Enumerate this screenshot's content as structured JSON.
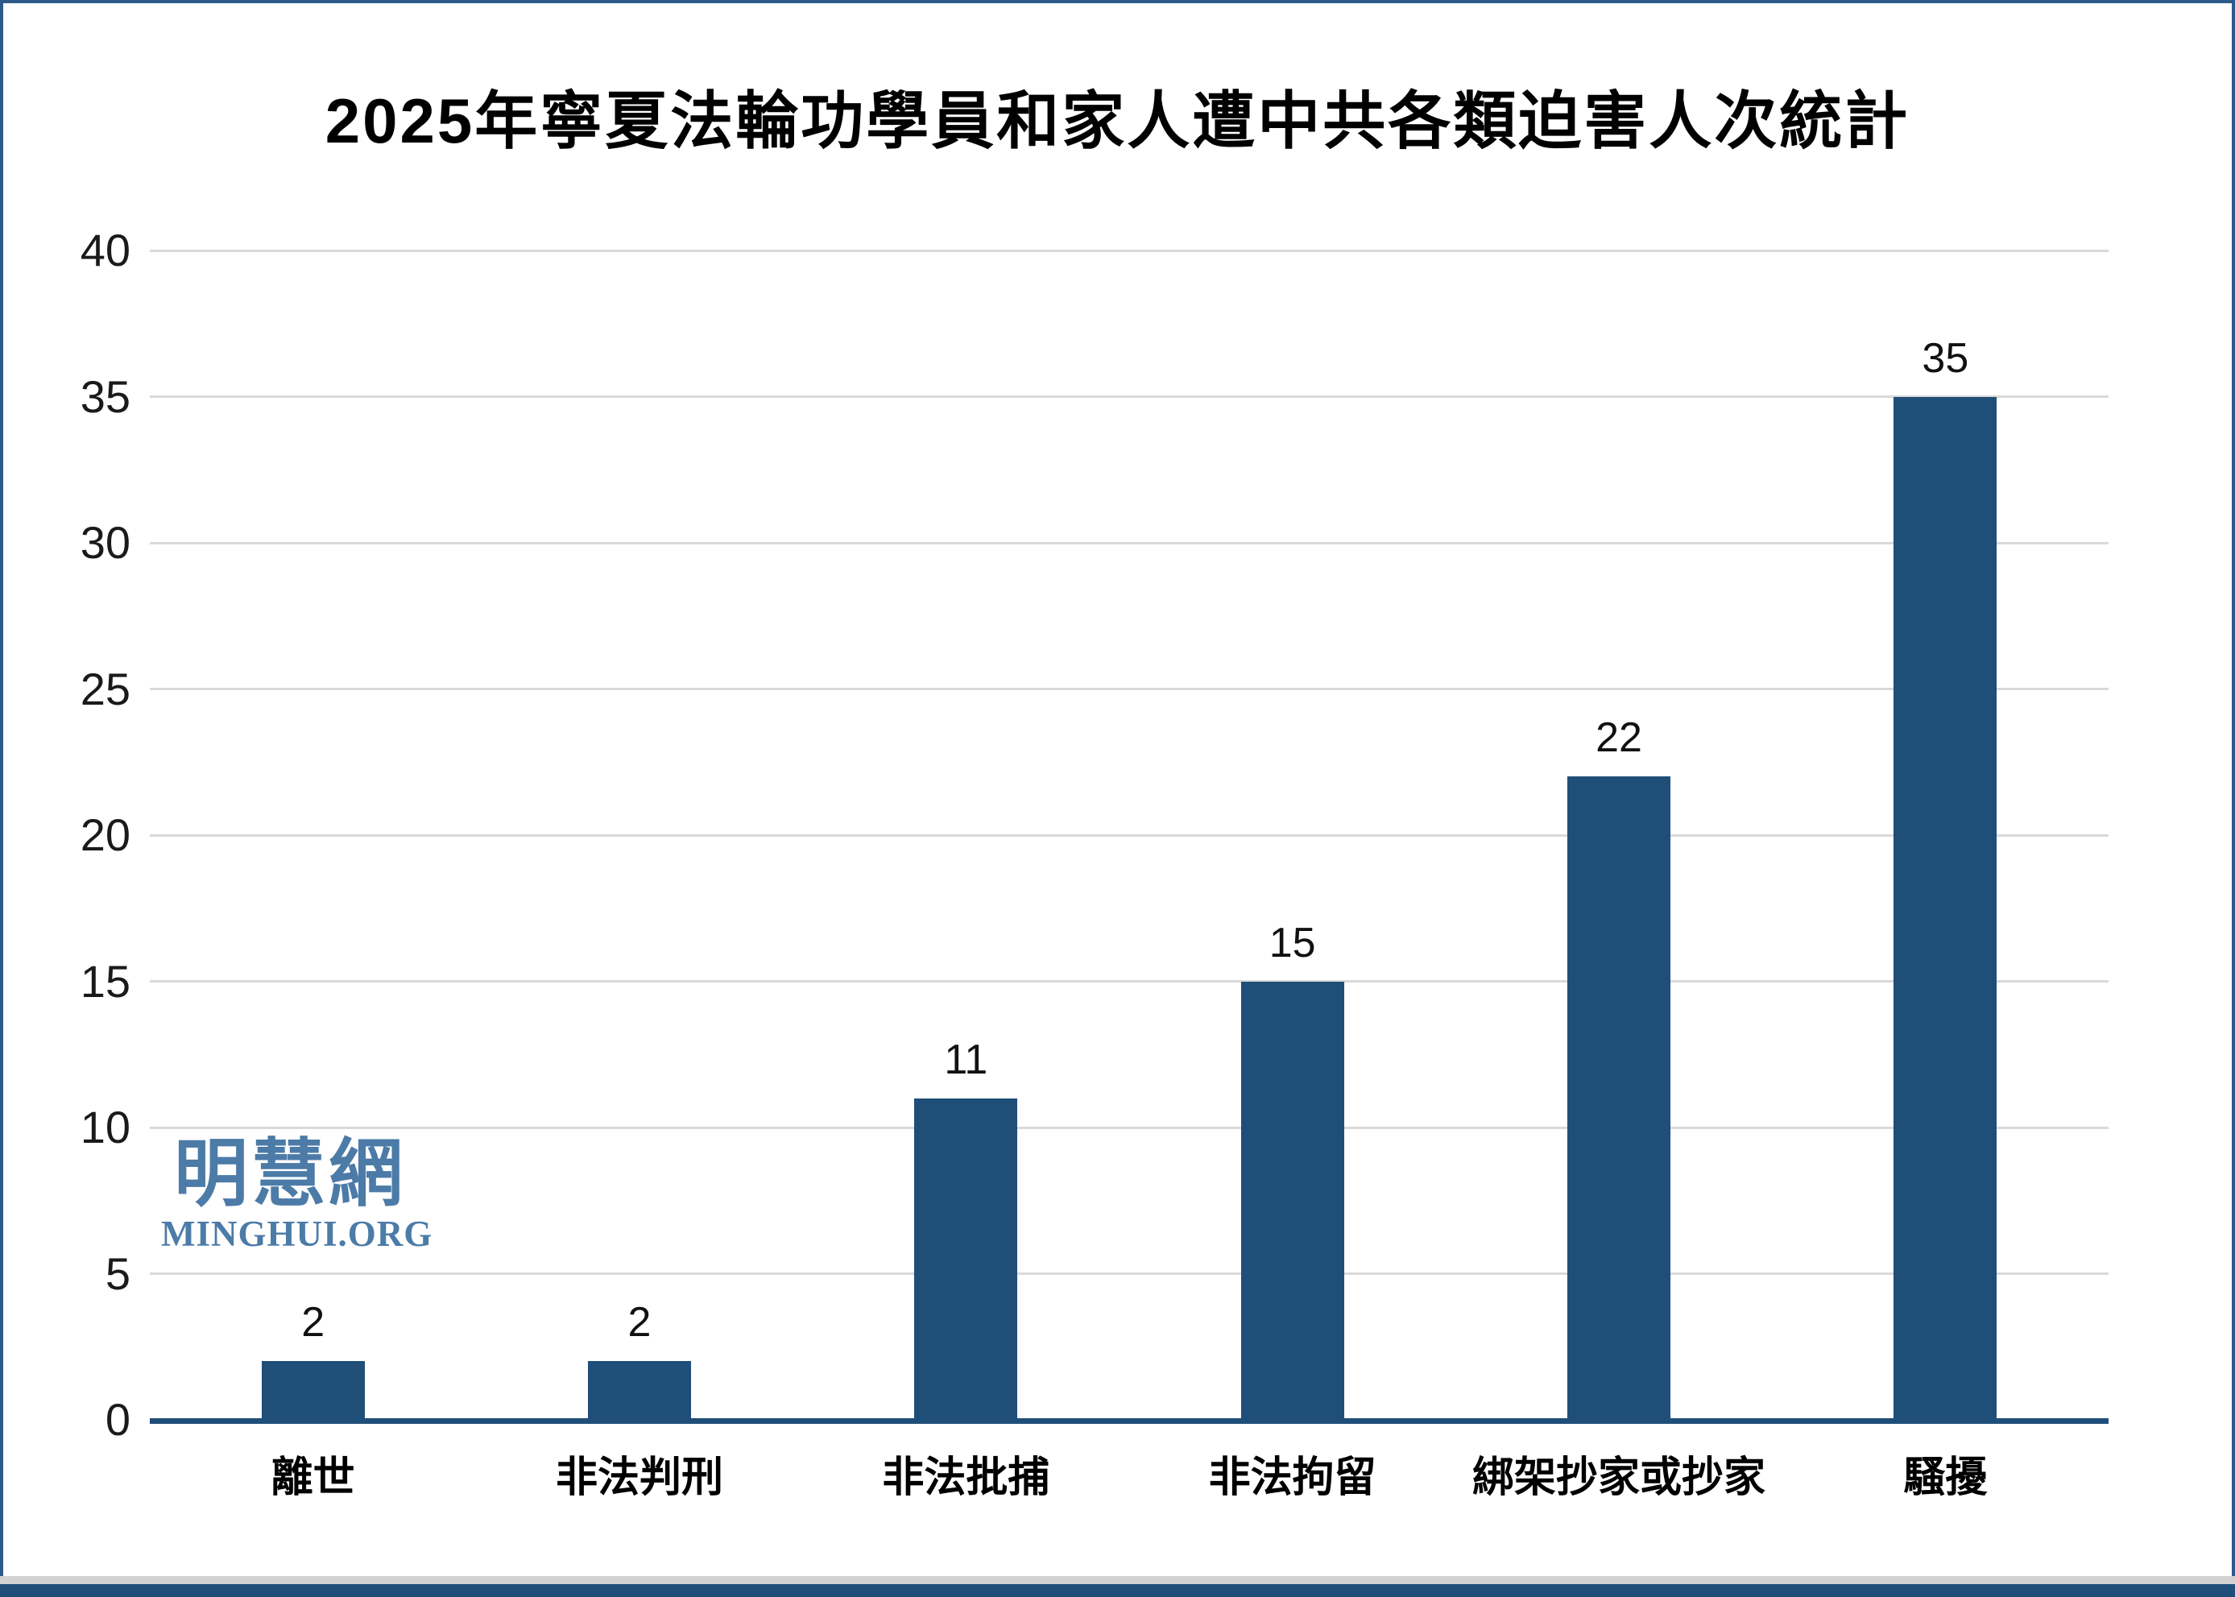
{
  "page": {
    "watermark": {
      "cjk": "明慧網",
      "latin": "MINGHUI.ORG",
      "color": "#4c7ba7"
    }
  },
  "chart_data": {
    "type": "bar",
    "title": "2025年寧夏法輪功學員和家人遭中共各類迫害人次統計",
    "categories": [
      "離世",
      "非法判刑",
      "非法批捕",
      "非法拘留",
      "綁架抄家或抄家",
      "騷擾"
    ],
    "values": [
      2,
      2,
      11,
      15,
      22,
      35
    ],
    "data_labels": [
      "2",
      "2",
      "11",
      "15",
      "22",
      "35"
    ],
    "xlabel": "",
    "ylabel": "",
    "ylim": [
      0,
      40
    ],
    "yticks": [
      0,
      5,
      10,
      15,
      20,
      25,
      30,
      35,
      40
    ],
    "grid": true,
    "legend": "none",
    "bar_color": "#1f4e79",
    "axis_color": "#1f4e79",
    "gridline_color": "#d9d9d9",
    "label_color": "#111111"
  }
}
